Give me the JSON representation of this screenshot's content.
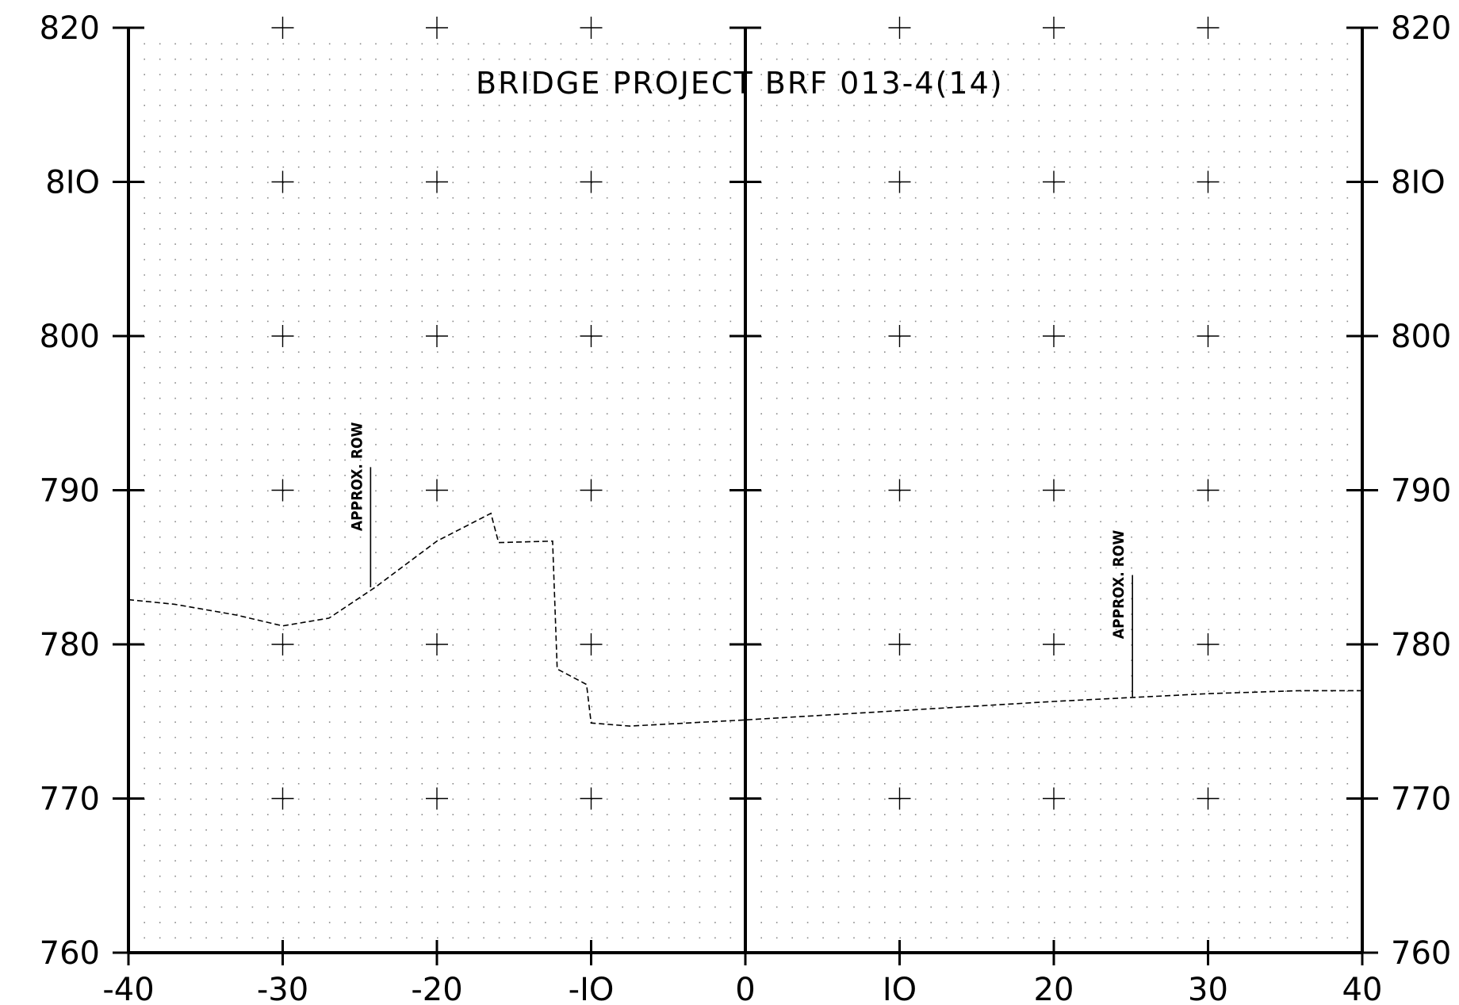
{
  "chart_data": {
    "type": "line",
    "title": "BRIDGE PROJECT BRF 013-4(14)",
    "xlabel": "",
    "ylabel": "",
    "xlim": [
      -40,
      40
    ],
    "ylim": [
      760,
      820
    ],
    "x_ticks": [
      -40,
      -30,
      -20,
      -10,
      0,
      10,
      20,
      30,
      40
    ],
    "x_tick_labels": [
      "-40",
      "-30",
      "-20",
      "-IO",
      "0",
      "IO",
      "20",
      "30",
      "40"
    ],
    "y_ticks": [
      760,
      770,
      780,
      790,
      800,
      810,
      820
    ],
    "y_tick_labels": [
      "760",
      "770",
      "780",
      "790",
      "800",
      "8IO",
      "820"
    ],
    "grid": "dotted",
    "series": [
      {
        "style": "dashed",
        "points": [
          [
            -40,
            782.9
          ],
          [
            -37,
            782.6
          ],
          [
            -33,
            781.9
          ],
          [
            -30,
            781.2
          ],
          [
            -27,
            781.7
          ],
          [
            -24,
            783.7
          ],
          [
            -20,
            786.7
          ],
          [
            -16.5,
            788.5
          ],
          [
            -16,
            786.6
          ],
          [
            -12.5,
            786.7
          ],
          [
            -12.2,
            778.4
          ],
          [
            -10.3,
            777.4
          ],
          [
            -10,
            774.9
          ],
          [
            -7.5,
            774.7
          ],
          [
            0,
            775.1
          ],
          [
            10,
            775.7
          ],
          [
            20,
            776.3
          ],
          [
            30,
            776.8
          ],
          [
            36,
            777.0
          ],
          [
            40,
            777.0
          ]
        ]
      }
    ],
    "annotations": [
      {
        "text": "APPROX. ROW",
        "x": -24.3,
        "y_top": 791.5,
        "y_bottom": 783.7
      },
      {
        "text": "APPROX. ROW",
        "x": 25.1,
        "y_top": 784.5,
        "y_bottom": 776.6
      }
    ]
  }
}
